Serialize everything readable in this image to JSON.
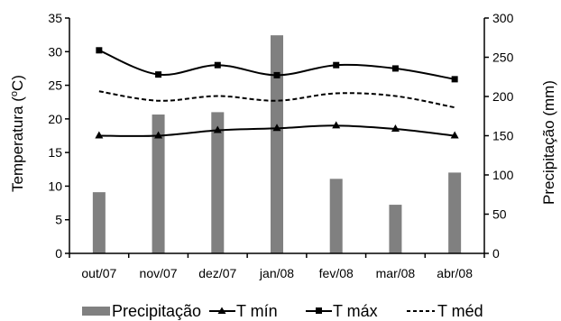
{
  "chart_data": {
    "type": "bar+line",
    "categories": [
      "out/07",
      "nov/07",
      "dez/07",
      "jan/08",
      "fev/08",
      "mar/08",
      "abr/08"
    ],
    "bars": {
      "name": "Precipitação",
      "axis": "right",
      "color": "#808080",
      "values": [
        78,
        177,
        180,
        278,
        95,
        62,
        103
      ]
    },
    "series": [
      {
        "name": "T mín",
        "axis": "left",
        "marker": "triangle",
        "style": "solid",
        "values": [
          17.5,
          17.5,
          18.3,
          18.6,
          19.0,
          18.5,
          17.5
        ]
      },
      {
        "name": "T máx",
        "axis": "left",
        "marker": "square",
        "style": "solid",
        "values": [
          30.2,
          26.6,
          28.0,
          26.5,
          28.0,
          27.5,
          25.9
        ]
      },
      {
        "name": "T méd",
        "axis": "left",
        "marker": "none",
        "style": "dashed",
        "values": [
          24.1,
          22.7,
          23.4,
          22.7,
          23.8,
          23.4,
          21.7
        ]
      }
    ],
    "y_left": {
      "label": "Temperatura (oC)",
      "label_main": "Temperatura (",
      "label_sup": "o",
      "label_end": "C)",
      "ylim": [
        0,
        35
      ],
      "ticks": [
        "0",
        "5",
        "10",
        "15",
        "20",
        "25",
        "30",
        "35"
      ]
    },
    "y_right": {
      "label": "Precipitação (mm)",
      "ylim": [
        0,
        300
      ],
      "ticks": [
        "0",
        "50",
        "100",
        "150",
        "200",
        "250",
        "300"
      ]
    },
    "legend": {
      "placement": "bottom",
      "entries": [
        "Precipitação",
        "T mín",
        "T máx",
        "T méd"
      ]
    }
  }
}
